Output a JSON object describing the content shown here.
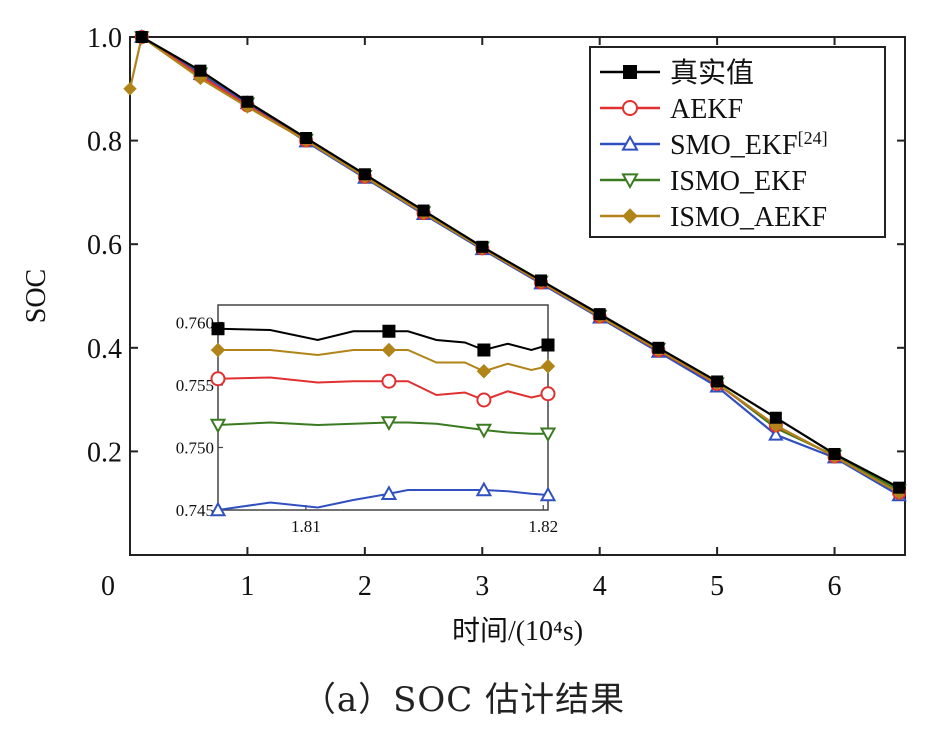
{
  "caption": "（a）SOC 估计结果",
  "chart_data": {
    "type": "line",
    "ylabel": "SOC",
    "xlabel": "时间/(10⁴s)",
    "xlim": [
      0,
      6.6
    ],
    "ylim": [
      0.0,
      1.0
    ],
    "x_ticks": [
      "0",
      "1",
      "2",
      "3",
      "4",
      "5",
      "6"
    ],
    "y_ticks": [
      "0.2",
      "0.4",
      "0.6",
      "0.8",
      "1.0"
    ],
    "legend_position": "top-right",
    "series": [
      {
        "name": "真实值",
        "color": "#000000",
        "marker": "square",
        "x": [
          0.1,
          0.6,
          1.0,
          1.5,
          2.0,
          2.5,
          3.0,
          3.5,
          4.0,
          4.5,
          5.0,
          5.5,
          6.0,
          6.55
        ],
        "y": [
          1.0,
          0.935,
          0.875,
          0.805,
          0.735,
          0.665,
          0.595,
          0.53,
          0.465,
          0.4,
          0.335,
          0.265,
          0.195,
          0.13
        ]
      },
      {
        "name": "AEKF",
        "color": "#e03030",
        "marker": "circle-open",
        "x": [
          0.1,
          0.6,
          1.0,
          1.5,
          2.0,
          2.5,
          3.0,
          3.5,
          4.0,
          4.5,
          5.0,
          5.5,
          6.0,
          6.55
        ],
        "y": [
          1.0,
          0.925,
          0.868,
          0.8,
          0.73,
          0.66,
          0.592,
          0.526,
          0.46,
          0.395,
          0.33,
          0.25,
          0.19,
          0.12
        ]
      },
      {
        "name": "SMO_EKF[24]",
        "color": "#3050c0",
        "marker": "triangle-up-open",
        "x": [
          0.1,
          0.6,
          1.0,
          1.5,
          2.0,
          2.5,
          3.0,
          3.5,
          4.0,
          4.5,
          5.0,
          5.5,
          6.0,
          6.55
        ],
        "y": [
          1.0,
          0.928,
          0.872,
          0.798,
          0.728,
          0.658,
          0.59,
          0.524,
          0.458,
          0.392,
          0.325,
          0.232,
          0.188,
          0.115
        ]
      },
      {
        "name": "ISMO_EKF",
        "color": "#3a7a20",
        "marker": "triangle-down-open",
        "x": [
          0.1,
          0.6,
          1.0,
          1.5,
          2.0,
          2.5,
          3.0,
          3.5,
          4.0,
          4.5,
          5.0,
          5.5,
          6.0,
          6.55
        ],
        "y": [
          1.0,
          0.93,
          0.872,
          0.802,
          0.732,
          0.662,
          0.594,
          0.528,
          0.462,
          0.398,
          0.332,
          0.245,
          0.192,
          0.125
        ]
      },
      {
        "name": "ISMO_AEKF",
        "color": "#b08418",
        "marker": "diamond",
        "x": [
          0.0,
          0.1,
          0.6,
          1.0,
          1.5,
          2.0,
          2.5,
          3.0,
          3.5,
          4.0,
          4.5,
          5.0,
          5.5,
          6.0,
          6.55
        ],
        "y": [
          0.9,
          1.0,
          0.92,
          0.865,
          0.8,
          0.73,
          0.66,
          0.592,
          0.527,
          0.46,
          0.396,
          0.331,
          0.25,
          0.19,
          0.12
        ]
      }
    ],
    "inset": {
      "xlim": [
        1.8063,
        1.8202
      ],
      "ylim": [
        0.745,
        0.7614
      ],
      "x_ticks": [
        "1.81",
        "1.82"
      ],
      "y_ticks": [
        "0.745",
        "0.750",
        "0.755",
        "0.760"
      ],
      "series": [
        {
          "name": "真实值",
          "x": [
            1.8063,
            1.8085,
            1.8105,
            1.812,
            1.8135,
            1.8143,
            1.8155,
            1.8167,
            1.8175,
            1.8185,
            1.8195,
            1.8202
          ],
          "y": [
            0.7595,
            0.7594,
            0.7586,
            0.7593,
            0.7593,
            0.7593,
            0.7586,
            0.7584,
            0.7578,
            0.7583,
            0.7578,
            0.7582
          ]
        },
        {
          "name": "AEKF",
          "x": [
            1.8063,
            1.8085,
            1.8105,
            1.812,
            1.8135,
            1.8143,
            1.8155,
            1.8167,
            1.8175,
            1.8185,
            1.8195,
            1.8202
          ],
          "y": [
            0.7555,
            0.7556,
            0.7552,
            0.7553,
            0.7553,
            0.7553,
            0.7542,
            0.7544,
            0.7538,
            0.7545,
            0.754,
            0.7543
          ]
        },
        {
          "name": "SMO_EKF[24]",
          "x": [
            1.8063,
            1.8085,
            1.8105,
            1.812,
            1.8135,
            1.8143,
            1.8155,
            1.8167,
            1.8175,
            1.8185,
            1.8195,
            1.8202
          ],
          "y": [
            0.745,
            0.7456,
            0.7452,
            0.7458,
            0.7463,
            0.7466,
            0.7466,
            0.7466,
            0.7466,
            0.7465,
            0.7463,
            0.7462
          ]
        },
        {
          "name": "ISMO_EKF",
          "x": [
            1.8063,
            1.8085,
            1.8105,
            1.812,
            1.8135,
            1.8143,
            1.8155,
            1.8167,
            1.8175,
            1.8185,
            1.8195,
            1.8202
          ],
          "y": [
            0.7518,
            0.752,
            0.7518,
            0.7519,
            0.752,
            0.752,
            0.7519,
            0.7516,
            0.7514,
            0.7512,
            0.7511,
            0.7511
          ]
        },
        {
          "name": "ISMO_AEKF",
          "x": [
            1.8063,
            1.8085,
            1.8105,
            1.812,
            1.8135,
            1.8143,
            1.8155,
            1.8167,
            1.8175,
            1.8185,
            1.8195,
            1.8202
          ],
          "y": [
            0.7578,
            0.7578,
            0.7574,
            0.7578,
            0.7578,
            0.7578,
            0.7568,
            0.7568,
            0.7561,
            0.7567,
            0.7562,
            0.7565
          ]
        }
      ]
    }
  }
}
